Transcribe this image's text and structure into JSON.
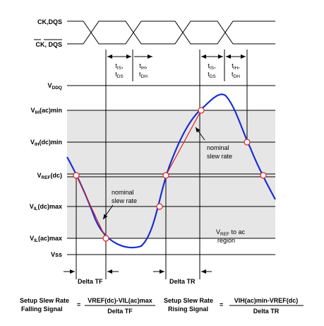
{
  "signals": {
    "ck": "CK,DQS",
    "ck_bar": "CK, DQS"
  },
  "timing": [
    [
      "t",
      "IS",
      ","
    ],
    [
      "t",
      "DS",
      ""
    ],
    [
      "t",
      "IH",
      ","
    ],
    [
      "t",
      "DH",
      ""
    ],
    [
      "t",
      "IS",
      ","
    ],
    [
      "t",
      "DS",
      ""
    ],
    [
      "t",
      "IH",
      ","
    ],
    [
      "t",
      "DH",
      ""
    ]
  ],
  "levels": {
    "vddq": [
      "V",
      "DDQ",
      ""
    ],
    "vih_ac": [
      "V",
      "IH",
      "(ac)min"
    ],
    "vih_dc": [
      "V",
      "IH",
      "(dc)min"
    ],
    "vref": [
      "V",
      "REF",
      "(dc)"
    ],
    "vil_dc": [
      "V",
      "IL",
      "(dc)max"
    ],
    "vil_ac": [
      "V",
      "IL",
      "(ac)max"
    ],
    "vss": [
      "Vss",
      "",
      ""
    ]
  },
  "annotations": {
    "nominal_1": "nominal",
    "slew_1": "slew rate",
    "nominal_2": "nominal",
    "slew_2": "slew rate",
    "region_1": [
      "V",
      "REF",
      " to ac"
    ],
    "region_2": "region",
    "delta_tf": "Delta TF",
    "delta_tr": "Delta TR"
  },
  "formulas": {
    "falling_1": "Setup Slew Rate",
    "falling_2": "Falling Signal",
    "eq_1": "=",
    "falling_num": "VREF(dc)-VIL(ac)max",
    "falling_den": "Delta TF",
    "rising_1": "Setup Slew Rate",
    "rising_2": "Rising Signal",
    "eq_2": "=",
    "rising_num": "VIH(ac)min-VREF(dc)",
    "rising_den": "Delta TR"
  }
}
